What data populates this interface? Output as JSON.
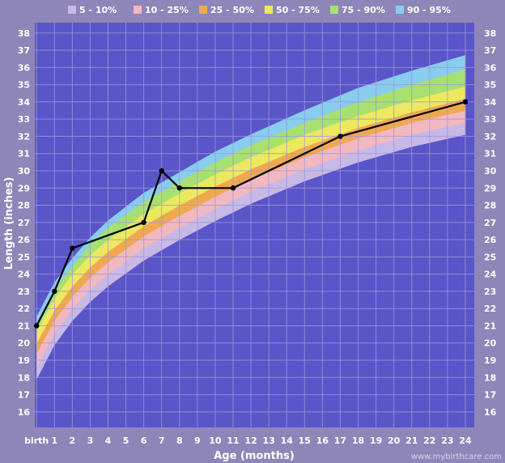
{
  "chart_data": {
    "type": "line",
    "xlabel": "Age (months)",
    "ylabel": "Length (inches)",
    "xlim": [
      -0.1,
      24.5
    ],
    "ylim": [
      15.1,
      38.6
    ],
    "x_tick_labels": [
      "birth",
      "1",
      "2",
      "3",
      "4",
      "5",
      "6",
      "7",
      "8",
      "9",
      "10",
      "11",
      "12",
      "13",
      "14",
      "15",
      "16",
      "17",
      "18",
      "19",
      "20",
      "21",
      "22",
      "23",
      "24"
    ],
    "y_ticks": [
      16,
      17,
      18,
      19,
      20,
      21,
      22,
      23,
      24,
      25,
      26,
      27,
      28,
      29,
      30,
      31,
      32,
      33,
      34,
      35,
      36,
      37,
      38
    ],
    "grid": true,
    "legend_placement": "top",
    "legend": [
      {
        "label": "5 - 10%",
        "color": "#c7b8e6"
      },
      {
        "label": "10 - 25%",
        "color": "#f2b8c0"
      },
      {
        "label": "25 - 50%",
        "color": "#f0a850"
      },
      {
        "label": "50 - 75%",
        "color": "#ece860"
      },
      {
        "label": "75 - 90%",
        "color": "#a8e070"
      },
      {
        "label": "90 - 95%",
        "color": "#88ccee"
      }
    ],
    "percentile_x": [
      0,
      1,
      2,
      3,
      4,
      6,
      8,
      10,
      12,
      15,
      18,
      21,
      24
    ],
    "percentile_bands": [
      {
        "name": "5 - 10%",
        "color": "#c7b8e6",
        "lower": [
          17.9,
          19.9,
          21.3,
          22.4,
          23.3,
          24.8,
          26.0,
          27.1,
          28.1,
          29.4,
          30.5,
          31.4,
          32.1
        ],
        "upper": [
          18.6,
          20.6,
          22.0,
          23.1,
          24.0,
          25.5,
          26.7,
          27.8,
          28.8,
          30.1,
          31.2,
          32.1,
          32.8
        ]
      },
      {
        "name": "10 - 25%",
        "color": "#f2b8c0",
        "lower": [
          18.6,
          20.6,
          22.0,
          23.1,
          24.0,
          25.5,
          26.7,
          27.8,
          28.8,
          30.1,
          31.2,
          32.1,
          32.8
        ],
        "upper": [
          19.4,
          21.3,
          22.7,
          23.8,
          24.7,
          26.2,
          27.4,
          28.5,
          29.5,
          30.8,
          31.9,
          32.8,
          33.5
        ]
      },
      {
        "name": "25 - 50%",
        "color": "#f0a850",
        "lower": [
          19.4,
          21.3,
          22.7,
          23.8,
          24.7,
          26.2,
          27.4,
          28.5,
          29.5,
          30.8,
          31.9,
          32.8,
          33.5
        ],
        "upper": [
          20.0,
          21.9,
          23.3,
          24.4,
          25.3,
          26.8,
          28.0,
          29.1,
          30.1,
          31.4,
          32.5,
          33.4,
          34.2
        ]
      },
      {
        "name": "50 - 75%",
        "color": "#ece860",
        "lower": [
          20.0,
          21.9,
          23.3,
          24.4,
          25.3,
          26.8,
          28.0,
          29.1,
          30.1,
          31.4,
          32.5,
          33.4,
          34.2
        ],
        "upper": [
          20.7,
          22.6,
          24.0,
          25.1,
          26.0,
          27.5,
          28.7,
          29.8,
          30.8,
          32.1,
          33.2,
          34.1,
          34.9
        ]
      },
      {
        "name": "75 - 90%",
        "color": "#a8e070",
        "lower": [
          20.7,
          22.6,
          24.0,
          25.1,
          26.0,
          27.5,
          28.7,
          29.8,
          30.8,
          32.1,
          33.2,
          34.1,
          34.9
        ],
        "upper": [
          21.1,
          23.1,
          24.5,
          25.7,
          26.7,
          28.2,
          29.4,
          30.5,
          31.5,
          32.8,
          34.0,
          35.0,
          35.9
        ]
      },
      {
        "name": "90 - 95%",
        "color": "#88ccee",
        "lower": [
          21.1,
          23.1,
          24.5,
          25.7,
          26.7,
          28.2,
          29.4,
          30.5,
          31.5,
          32.8,
          34.0,
          35.0,
          35.9
        ],
        "upper": [
          21.5,
          23.5,
          24.9,
          26.1,
          27.1,
          28.7,
          29.9,
          31.1,
          32.1,
          33.5,
          34.8,
          35.8,
          36.7
        ]
      }
    ],
    "series": [
      {
        "x": [
          0,
          1,
          2,
          6,
          7,
          8,
          11,
          17,
          24
        ],
        "y": [
          21,
          23,
          25.5,
          27,
          30,
          29,
          29,
          32,
          34
        ],
        "color": "#000000"
      }
    ]
  },
  "colors": {
    "page_background": "#8e86b8",
    "plot_background": "#5a55c8",
    "grid": "#9c98dc",
    "line": "#000000",
    "text": "#ffffff"
  },
  "watermark": "www.mybirthcare.com"
}
